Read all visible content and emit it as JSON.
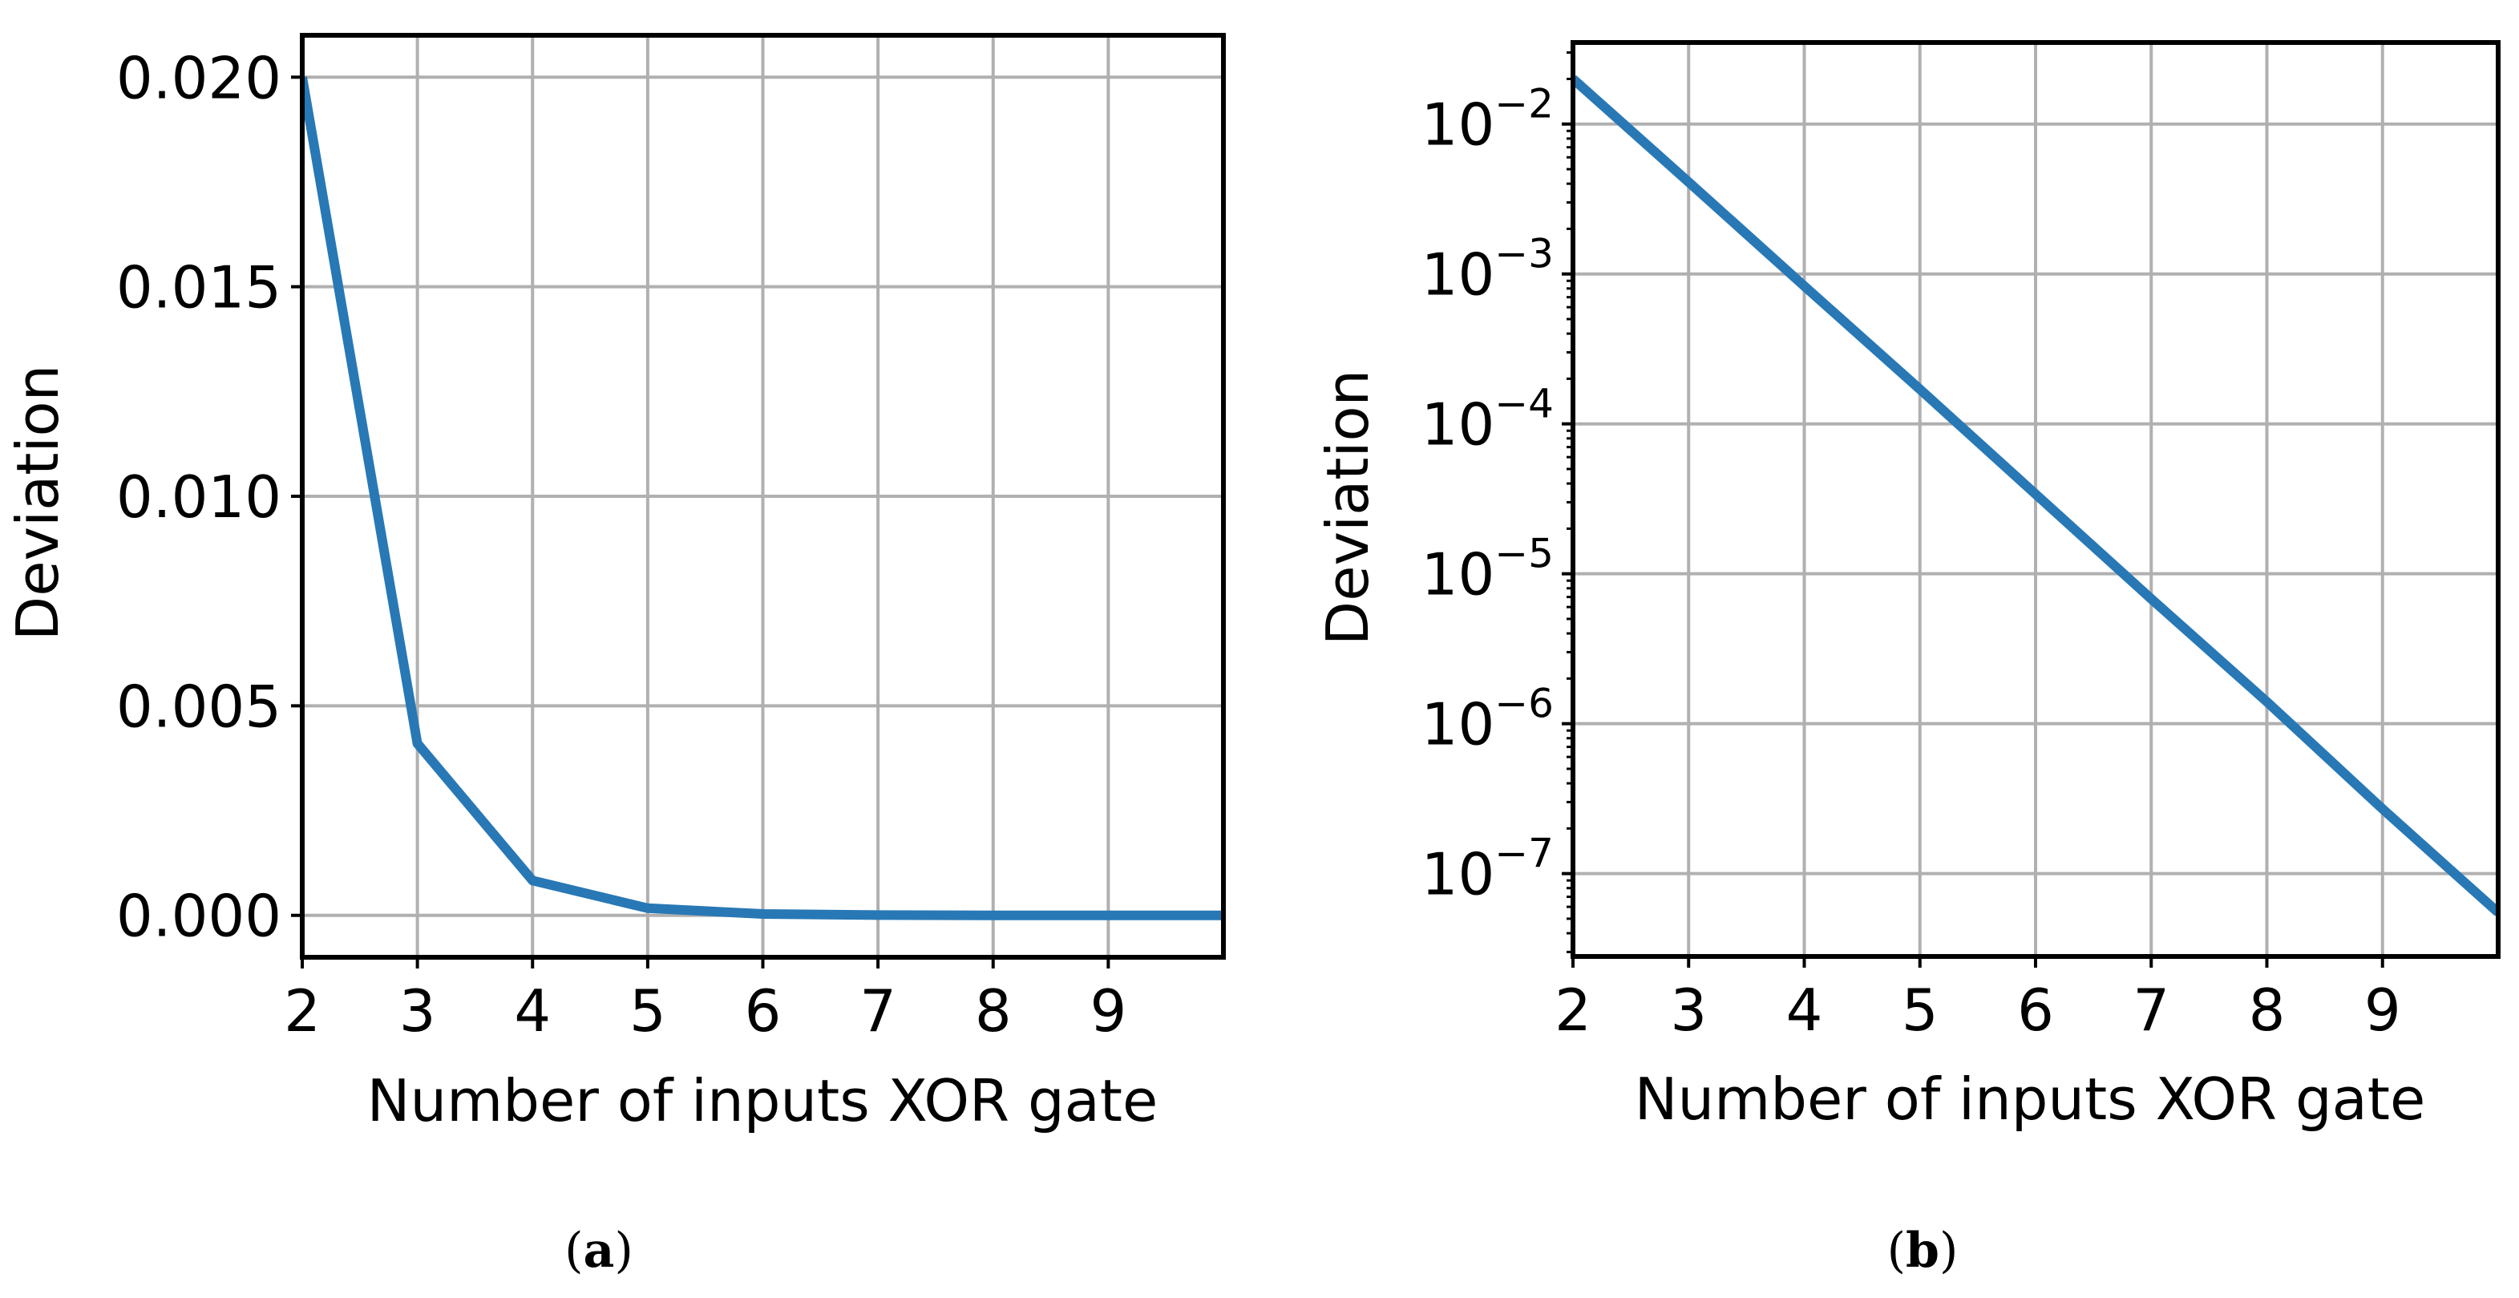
{
  "chart_data": [
    {
      "type": "line",
      "panel": "a",
      "yscale": "linear",
      "x": [
        2,
        3,
        4,
        5,
        6,
        7,
        8,
        9,
        10
      ],
      "series": [
        {
          "values": [
            0.02,
            0.0041,
            0.00083,
            0.00017,
            3.4e-05,
            6.8e-06,
            1.4e-06,
            2.7e-07,
            5.5e-08
          ]
        }
      ],
      "xlabel": "Number of inputs XOR gate",
      "ylabel": "Deviation",
      "xlim": [
        2,
        10
      ],
      "ylim": [
        -0.001,
        0.021
      ],
      "xticks": [
        2,
        3,
        4,
        5,
        6,
        7,
        8,
        9
      ],
      "xtick_labels": [
        "2",
        "3",
        "4",
        "5",
        "6",
        "7",
        "8",
        "9"
      ],
      "yticks": [
        0.0,
        0.005,
        0.01,
        0.015,
        0.02
      ],
      "ytick_labels": [
        "0.000",
        "0.005",
        "0.010",
        "0.015",
        "0.020"
      ],
      "grid": true,
      "line_color": "#2878b5",
      "grid_color": "#b0b0b0",
      "caption_letter": "a"
    },
    {
      "type": "line",
      "panel": "b",
      "yscale": "log",
      "x": [
        2,
        3,
        4,
        5,
        6,
        7,
        8,
        9,
        10
      ],
      "series": [
        {
          "values": [
            0.02,
            0.0041,
            0.00083,
            0.00017,
            3.4e-05,
            6.8e-06,
            1.4e-06,
            2.7e-07,
            5.5e-08
          ]
        }
      ],
      "xlabel": "Number of inputs XOR gate",
      "ylabel": "Deviation",
      "xlim": [
        2,
        10
      ],
      "ylim": [
        2.8e-08,
        0.035
      ],
      "xticks": [
        2,
        3,
        4,
        5,
        6,
        7,
        8,
        9
      ],
      "xtick_labels": [
        "2",
        "3",
        "4",
        "5",
        "6",
        "7",
        "8",
        "9"
      ],
      "yticks": [
        0.01,
        0.001,
        0.0001,
        1e-05,
        1e-06,
        1e-07
      ],
      "ytick_exponents": [
        "−2",
        "−3",
        "−4",
        "−5",
        "−6",
        "−7"
      ],
      "ytick_base": "10",
      "grid": true,
      "line_color": "#2878b5",
      "grid_color": "#b0b0b0",
      "caption_letter": "b"
    }
  ]
}
